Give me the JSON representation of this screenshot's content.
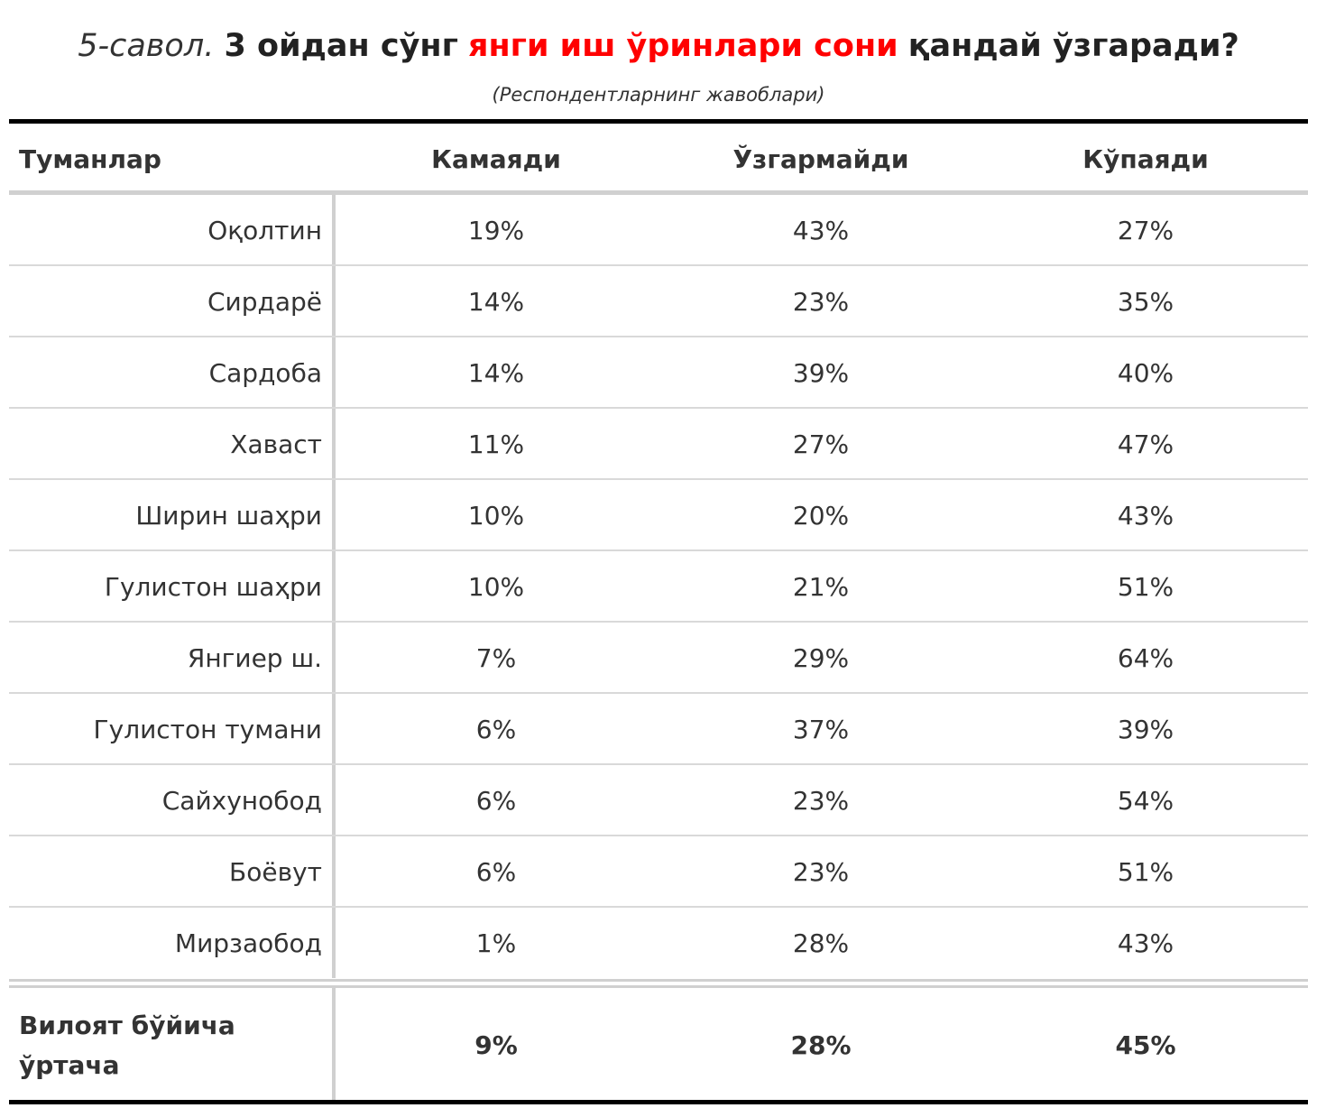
{
  "title": {
    "question_num": "5-савол.",
    "part1": "3 ойдан сўнг",
    "part_red": "янги иш ўринлари сони",
    "part2": "қандай ўзгаради?"
  },
  "subtitle": "(Респондентларнинг жавоблари)",
  "colors": {
    "accent_red": "#ff0000",
    "rule_dark": "#000000",
    "rule_light": "#d0d0d0"
  },
  "table": {
    "headers": [
      "Туманлар",
      "Камаяди",
      "Ўзгармайди",
      "Кўпаяди"
    ],
    "rows": [
      {
        "district": "Оқолтин",
        "decrease": "19%",
        "same": "43%",
        "increase": "27%"
      },
      {
        "district": "Сирдарё",
        "decrease": "14%",
        "same": "23%",
        "increase": "35%"
      },
      {
        "district": "Сардоба",
        "decrease": "14%",
        "same": "39%",
        "increase": "40%"
      },
      {
        "district": "Хаваст",
        "decrease": "11%",
        "same": "27%",
        "increase": "47%"
      },
      {
        "district": "Ширин шаҳри",
        "decrease": "10%",
        "same": "20%",
        "increase": "43%"
      },
      {
        "district": "Гулистон шаҳри",
        "decrease": "10%",
        "same": "21%",
        "increase": "51%"
      },
      {
        "district": "Янгиер ш.",
        "decrease": "7%",
        "same": "29%",
        "increase": "64%"
      },
      {
        "district": "Гулистон тумани",
        "decrease": "6%",
        "same": "37%",
        "increase": "39%"
      },
      {
        "district": "Сайхунобод",
        "decrease": "6%",
        "same": "23%",
        "increase": "54%"
      },
      {
        "district": "Боёвут",
        "decrease": "6%",
        "same": "23%",
        "increase": "51%"
      },
      {
        "district": "Мирзаобод",
        "decrease": "1%",
        "same": "28%",
        "increase": "43%"
      }
    ],
    "footer": {
      "label": "Вилоят бўйича ўртача",
      "decrease": "9%",
      "same": "28%",
      "increase": "45%"
    }
  }
}
